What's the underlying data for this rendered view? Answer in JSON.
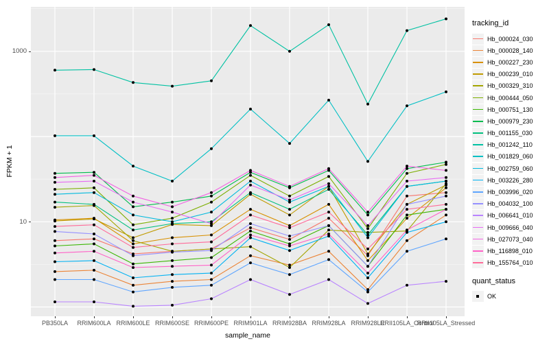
{
  "axes": {
    "x_title": "sample_name",
    "y_title": "FPKM + 1"
  },
  "legend": {
    "tracking": {
      "title": "tracking_id"
    },
    "quant": {
      "title": "quant_status",
      "items": [
        {
          "label": "OK",
          "symbol": "point",
          "color": "#000000"
        }
      ]
    }
  },
  "panel_colors": {
    "background": "#EBEBEB",
    "grid": "#FFFFFF",
    "tick": "#333333",
    "tick_label": "#4D4D4D"
  },
  "chart_data": {
    "type": "line",
    "title": "",
    "xlabel": "sample_name",
    "ylabel": "FPKM + 1",
    "y_scale": "log10",
    "ylim": [
      0.8,
      2600
    ],
    "grid": "on",
    "legend_position": "right",
    "point_color": "#000000",
    "quant_status": "OK",
    "y_ticks": [
      {
        "value": 10,
        "label": "10"
      },
      {
        "value": 1000,
        "label": "1000"
      }
    ],
    "x_categories": [
      "PB350LA",
      "RRIM600LA",
      "RRIM600LE",
      "RRIM600SE",
      "RRIM600PE",
      "RRIM901LA",
      "RRIM928BA",
      "RRIM928LA",
      "RRIM928LE",
      "RRII105LA_Control",
      "RRII105LA_Stressed"
    ],
    "series": [
      {
        "name": "Hb_000024_030",
        "color": "#F8766D",
        "values": [
          6.0,
          6.3,
          4.2,
          4.5,
          4.8,
          8.5,
          6.2,
          11,
          4.0,
          20,
          22
        ]
      },
      {
        "name": "Hb_000028_140",
        "color": "#EB8335",
        "values": [
          2.6,
          2.7,
          1.8,
          2.0,
          2.1,
          4.0,
          3.1,
          4.5,
          1.6,
          6.0,
          12
        ]
      },
      {
        "name": "Hb_000227_230",
        "color": "#D89000",
        "values": [
          10.5,
          11,
          5.5,
          6.5,
          7.0,
          14,
          9.0,
          16,
          3.5,
          11,
          25
        ]
      },
      {
        "name": "Hb_000239_010",
        "color": "#C09B00",
        "values": [
          10.2,
          10.8,
          6.5,
          9.3,
          9.0,
          21,
          12,
          26,
          4.2,
          16,
          27
        ]
      },
      {
        "name": "Hb_000329_310",
        "color": "#A3A500",
        "values": [
          14.8,
          15.5,
          6.0,
          4.5,
          4.8,
          5.1,
          2.9,
          8.0,
          7.5,
          7.8,
          28
        ]
      },
      {
        "name": "Hb_000444_050",
        "color": "#7CAE00",
        "values": [
          24,
          25,
          9.2,
          11,
          17,
          35,
          20,
          34,
          8.3,
          37,
          47
        ]
      },
      {
        "name": "Hb_000751_130",
        "color": "#39B600",
        "values": [
          5.2,
          5.5,
          3.2,
          3.5,
          3.8,
          7.8,
          5.5,
          9.0,
          3.0,
          12,
          14
        ]
      },
      {
        "name": "Hb_000979_230",
        "color": "#00BB4E",
        "values": [
          37,
          38,
          15,
          17,
          20,
          38,
          25,
          40,
          12,
          42,
          50
        ]
      },
      {
        "name": "Hb_001155_030",
        "color": "#00BF7D",
        "values": [
          17,
          16,
          8.0,
          9.5,
          10,
          22,
          14,
          24,
          7.0,
          26,
          30
        ]
      },
      {
        "name": "Hb_001242_110",
        "color": "#00C1A2",
        "values": [
          600,
          610,
          430,
          390,
          450,
          2000,
          1000,
          2050,
          240,
          1750,
          2400
        ]
      },
      {
        "name": "Hb_001829_060",
        "color": "#00BFC4",
        "values": [
          102,
          102,
          45,
          30,
          72,
          210,
          83,
          267,
          51,
          229,
          334
        ]
      },
      {
        "name": "Hb_002759_060",
        "color": "#00BADE",
        "values": [
          21,
          22,
          12,
          10,
          13,
          30,
          17,
          26,
          6.5,
          26,
          30
        ]
      },
      {
        "name": "Hb_003226_280",
        "color": "#00B2F3",
        "values": [
          3.4,
          3.5,
          2.2,
          2.4,
          2.5,
          6.5,
          4.6,
          6.8,
          2.2,
          7.5,
          10
        ]
      },
      {
        "name": "Hb_003996_020",
        "color": "#5EA5FF",
        "values": [
          2.1,
          2.1,
          1.5,
          1.7,
          1.8,
          3.3,
          2.4,
          3.6,
          1.5,
          4.5,
          6.3
        ]
      },
      {
        "name": "Hb_004032_100",
        "color": "#9590FF",
        "values": [
          7.7,
          7.2,
          4.0,
          4.4,
          4.6,
          9.5,
          6.8,
          9.0,
          3.0,
          16,
          20
        ]
      },
      {
        "name": "Hb_006641_010",
        "color": "#B983FF",
        "values": [
          1.15,
          1.15,
          1.02,
          1.05,
          1.25,
          2.1,
          1.4,
          2.1,
          1.1,
          1.8,
          2.0
        ]
      },
      {
        "name": "Hb_009666_040",
        "color": "#E76BF3",
        "values": [
          29,
          30,
          17,
          13,
          9.5,
          27,
          18,
          28,
          9.0,
          30,
          33
        ]
      },
      {
        "name": "Hb_027073_040",
        "color": "#F263E3",
        "values": [
          33,
          35,
          20,
          15,
          22,
          40,
          26,
          42,
          13,
          45,
          40
        ]
      },
      {
        "name": "Hb_116898_010",
        "color": "#FF61C7",
        "values": [
          4.3,
          4.5,
          2.9,
          3.0,
          3.1,
          7.0,
          5.2,
          7.2,
          2.5,
          8.0,
          14
        ]
      },
      {
        "name": "Hb_155764_010",
        "color": "#FF6A99",
        "values": [
          8.8,
          9.2,
          5.0,
          5.5,
          5.8,
          12,
          8.5,
          13,
          4.8,
          14,
          16
        ]
      }
    ]
  }
}
